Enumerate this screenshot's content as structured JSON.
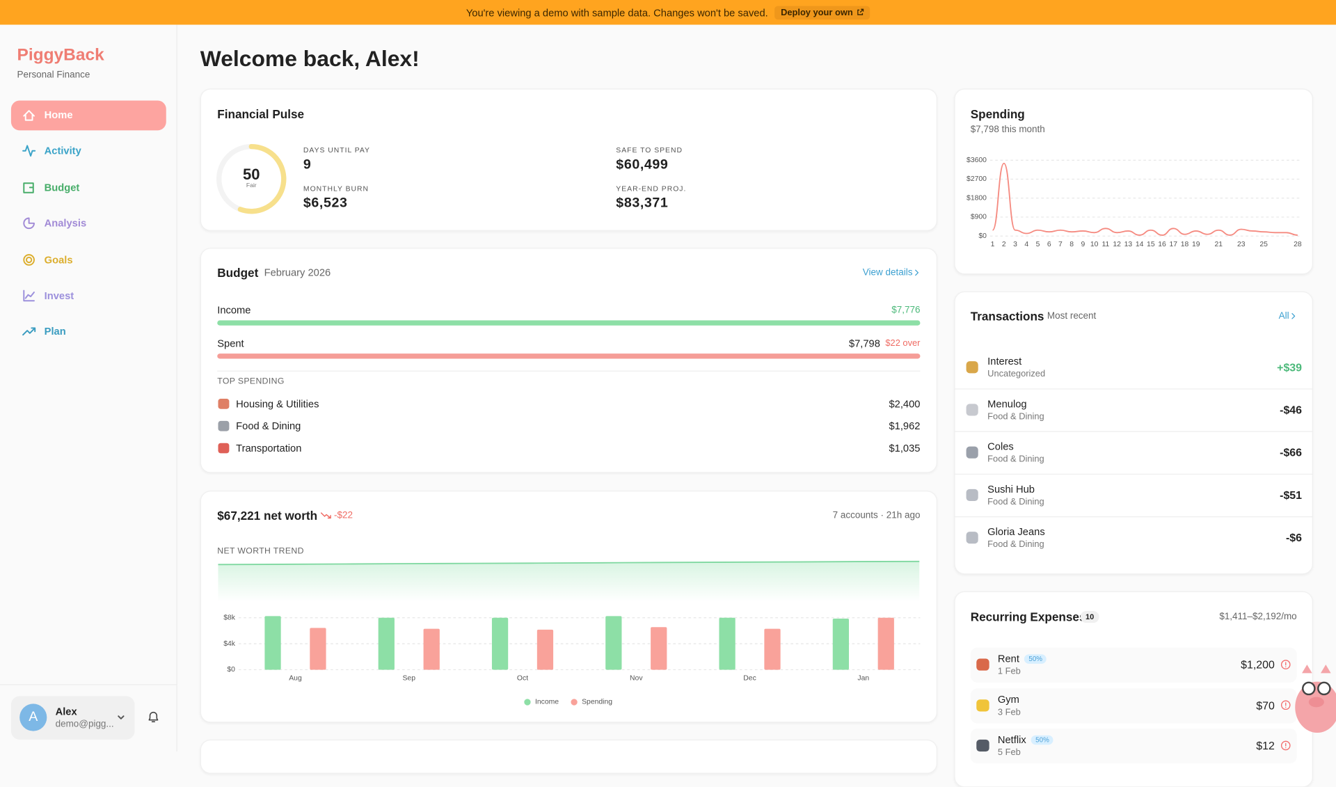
{
  "banner": {
    "message": "You're viewing a demo with sample data. Changes won't be saved.",
    "action": "Deploy your own"
  },
  "sidebar": {
    "brand": "PiggyBack",
    "tagline": "Personal Finance",
    "nav": [
      "Home",
      "Activity",
      "Budget",
      "Analysis",
      "Goals",
      "Invest",
      "Plan"
    ],
    "user": {
      "initial": "A",
      "name": "Alex",
      "email": "demo@pigg..."
    }
  },
  "page_title": "Welcome back, Alex!",
  "pulse": {
    "title": "Financial Pulse",
    "score": "50",
    "score_label": "Fair",
    "metrics": [
      {
        "label": "DAYS UNTIL PAY",
        "value": "9"
      },
      {
        "label": "SAFE TO SPEND",
        "value": "$60,499"
      },
      {
        "label": "MONTHLY BURN",
        "value": "$6,523"
      },
      {
        "label": "YEAR-END PROJ.",
        "value": "$83,371"
      }
    ]
  },
  "budget": {
    "title": "Budget",
    "period": "February 2026",
    "link": "View details",
    "income": {
      "label": "Income",
      "value": "$7,776"
    },
    "spent": {
      "label": "Spent",
      "value": "$7,798",
      "note": "$22 over"
    },
    "top_title": "TOP SPENDING",
    "top": [
      {
        "name": "Housing & Utilities",
        "amount": "$2,400"
      },
      {
        "name": "Food & Dining",
        "amount": "$1,962"
      },
      {
        "name": "Transportation",
        "amount": "$1,035"
      }
    ]
  },
  "net_worth": {
    "headline": "$67,221 net worth",
    "change": "-$22",
    "meta": "7 accounts · 21h ago"
  },
  "spending": {
    "title": "Spending",
    "subtitle": "$7,798 this month"
  },
  "transactions": {
    "title": "Transactions",
    "subtitle": "Most recent",
    "link": "All",
    "items": [
      {
        "name": "Interest",
        "category": "Uncategorized",
        "amount": "+$39"
      },
      {
        "name": "Menulog",
        "category": "Food & Dining",
        "amount": "-$46"
      },
      {
        "name": "Coles",
        "category": "Food & Dining",
        "amount": "-$66"
      },
      {
        "name": "Sushi Hub",
        "category": "Food & Dining",
        "amount": "-$51"
      },
      {
        "name": "Gloria Jeans",
        "category": "Food & Dining",
        "amount": "-$6"
      }
    ]
  },
  "recurring": {
    "title": "Recurring Expenses",
    "count": "10",
    "range": "$1,411–$2,192/mo",
    "items": [
      {
        "name": "Rent",
        "badge": "50%",
        "date": "1 Feb",
        "amount": "$1,200"
      },
      {
        "name": "Gym",
        "date": "3 Feb",
        "amount": "$70"
      },
      {
        "name": "Netflix",
        "badge": "50%",
        "date": "5 Feb",
        "amount": "$12"
      }
    ]
  },
  "chart_data": [
    {
      "type": "line",
      "color": "#f58a80",
      "x": [
        1,
        2,
        3,
        4,
        5,
        6,
        7,
        8,
        9,
        10,
        11,
        12,
        13,
        14,
        15,
        16,
        17,
        18,
        19,
        20,
        21,
        22,
        23,
        24,
        25,
        26,
        27,
        28
      ],
      "values": [
        280,
        3450,
        280,
        120,
        280,
        200,
        280,
        200,
        240,
        160,
        360,
        160,
        240,
        40,
        280,
        40,
        360,
        80,
        240,
        80,
        280,
        40,
        320,
        240,
        200,
        160,
        160,
        40
      ],
      "xlim": [
        1,
        28
      ],
      "xticks": [
        1,
        2,
        3,
        4,
        5,
        6,
        7,
        8,
        9,
        10,
        11,
        12,
        13,
        14,
        15,
        16,
        17,
        18,
        19,
        21,
        23,
        25,
        28
      ],
      "ylim": [
        0,
        3600
      ],
      "yticks": [
        {
          "value": 0,
          "label": "$0"
        },
        {
          "value": 900,
          "label": "$900"
        },
        {
          "value": 1800,
          "label": "$1800"
        },
        {
          "value": 2700,
          "label": "$2700"
        },
        {
          "value": 3600,
          "label": "$3600"
        }
      ],
      "grid": true
    },
    {
      "type": "bar",
      "categories": [
        "Aug",
        "Sep",
        "Oct",
        "Nov",
        "Dec",
        "Jan"
      ],
      "series": [
        {
          "name": "Income",
          "color": "#8ddfa6",
          "values": [
            8260,
            8000,
            8000,
            8260,
            8000,
            7870
          ]
        },
        {
          "name": "Spending",
          "color": "#f9a29a",
          "values": [
            6430,
            6300,
            6170,
            6560,
            6300,
            8000
          ]
        }
      ],
      "ylim": [
        0,
        8000
      ],
      "yticks": [
        {
          "value": 0,
          "label": "$0"
        },
        {
          "value": 4000,
          "label": "$4k"
        },
        {
          "value": 8000,
          "label": "$8k"
        }
      ],
      "grid": true,
      "legend": "bottom"
    },
    {
      "type": "area",
      "title": "NET WORTH TREND",
      "color": "#7fd8a0",
      "values": [
        62000,
        62500,
        63000,
        63500,
        64000,
        64500,
        65000,
        65500,
        66000,
        66500,
        67000,
        67221
      ],
      "ylim": [
        0,
        70000
      ]
    }
  ]
}
